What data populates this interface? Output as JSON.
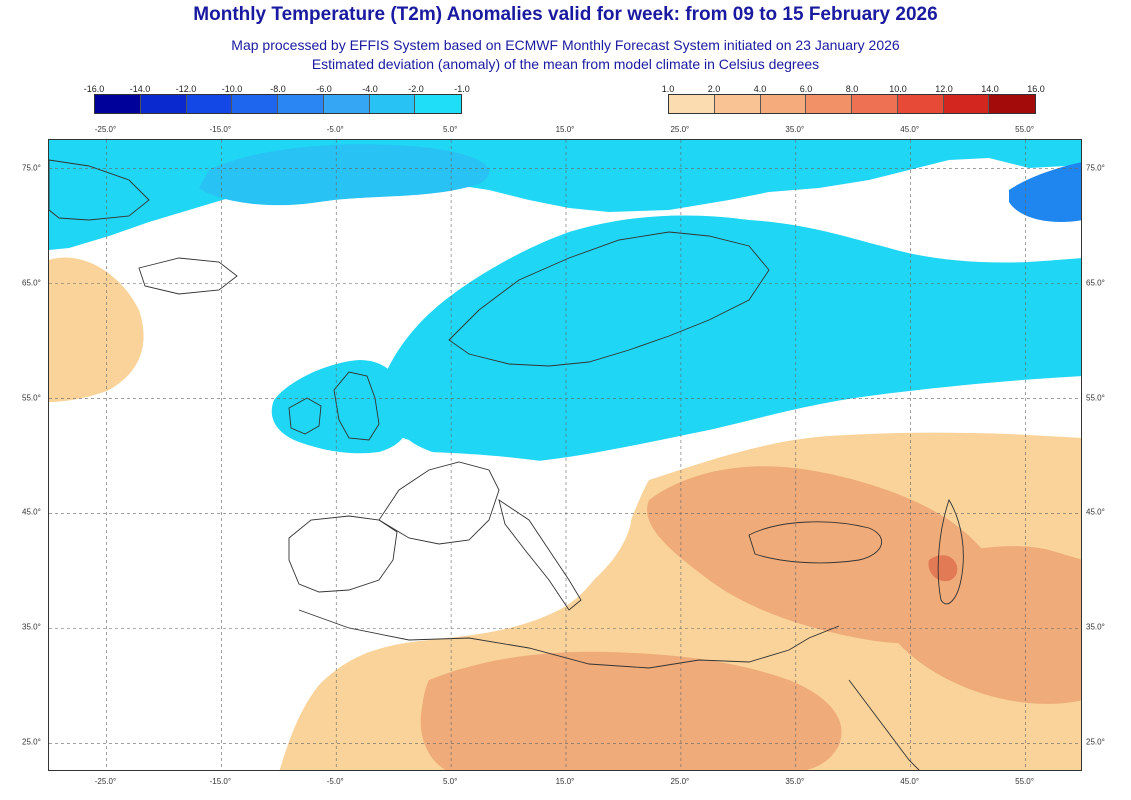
{
  "title": "Monthly Temperature (T2m) Anomalies valid for week: from 09 to 15 February 2026",
  "subtitle_1": "Map processed by EFFIS System based on ECMWF Monthly Forecast System initiated on 23 January 2026",
  "subtitle_2": "Estimated deviation (anomaly) of the mean from model climate in Celsius degrees",
  "colors": {
    "strong_cold": "#1e6fe6",
    "cold": "#2ad0f2",
    "mild_cold": "#1fd6f4",
    "weak_warm": "#f9d39a",
    "warm": "#efab7a",
    "strong_warm": "#e37a56",
    "ocean_edge": "#e8e8e8"
  },
  "legend_cold": {
    "labels": [
      "-16.0",
      "-14.0",
      "-12.0",
      "-10.0",
      "-8.0",
      "-6.0",
      "-4.0",
      "-2.0",
      "-1.0"
    ],
    "colors": [
      "#00009a",
      "#0a2ad0",
      "#1448e6",
      "#1e66ee",
      "#2a86f2",
      "#35a6f4",
      "#28c2f4",
      "#1edff7"
    ]
  },
  "legend_warm": {
    "labels": [
      "1.0",
      "2.0",
      "4.0",
      "6.0",
      "8.0",
      "10.0",
      "12.0",
      "14.0",
      "16.0"
    ],
    "colors": [
      "#fbdcb0",
      "#f9c394",
      "#f6ab7c",
      "#f29168",
      "#ee7154",
      "#e84a38",
      "#d2261f",
      "#a30a0a"
    ]
  },
  "lon_labels": [
    "-25.0°",
    "-15.0°",
    "-5.0°",
    "5.0°",
    "15.0°",
    "25.0°",
    "35.0°",
    "45.0°",
    "55.0°"
  ],
  "lat_labels": [
    "75.0°",
    "65.0°",
    "55.0°",
    "45.0°",
    "35.0°",
    "25.0°"
  ],
  "map": {
    "lon_min": -30.0,
    "lon_max": 60.0,
    "lat_min": 22.5,
    "lat_max": 77.5
  }
}
